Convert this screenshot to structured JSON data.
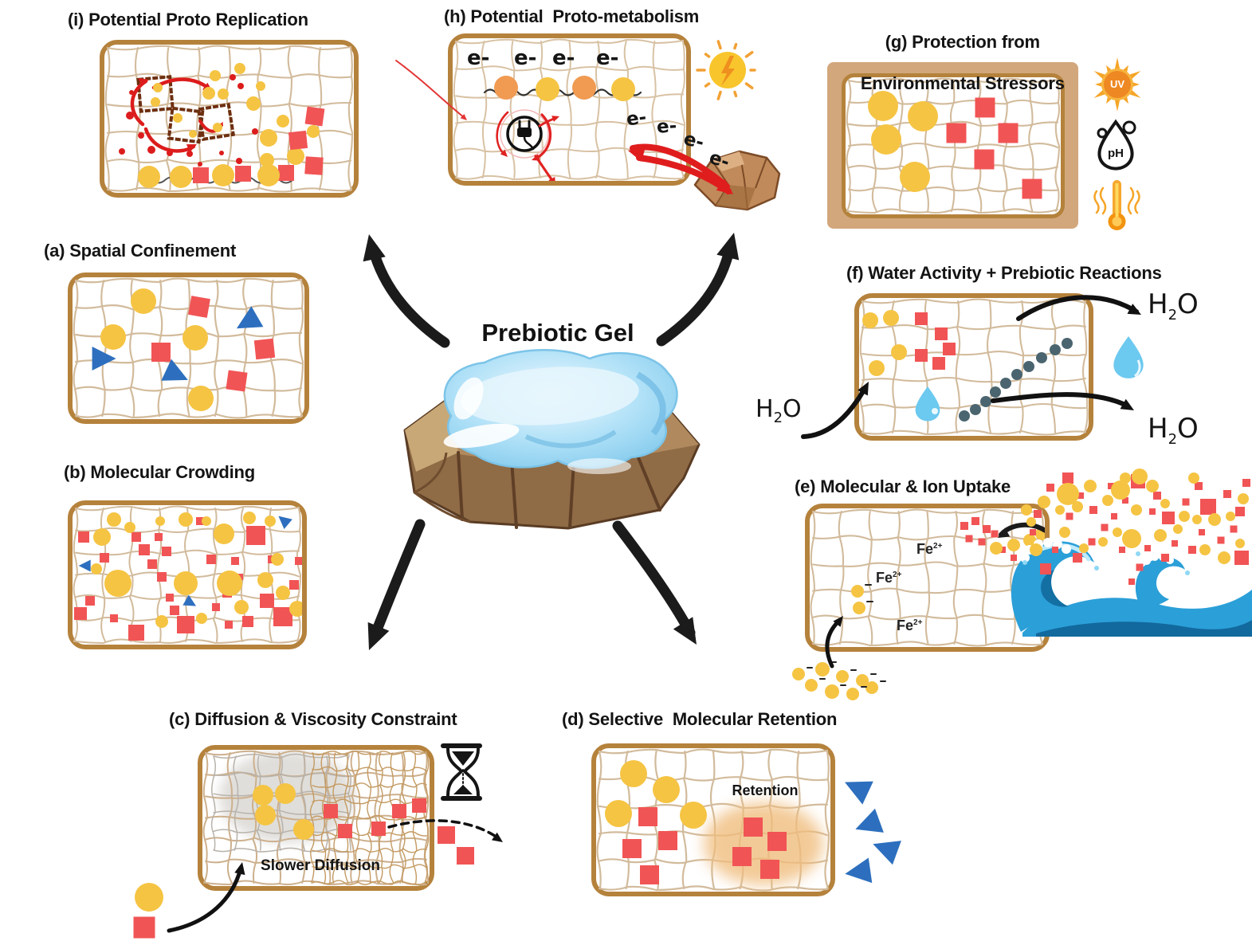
{
  "figure_title": "Prebiotic Gel",
  "panels": {
    "a": {
      "label": "(a) Spatial Confinement"
    },
    "b": {
      "label": "(b) Molecular Crowding"
    },
    "c": {
      "label": "(c) Diffusion & Viscosity Constraint",
      "annotation": "Slower Diffusion"
    },
    "d": {
      "label": "(d) Selective  Molecular Retention",
      "annotation": "Retention"
    },
    "e": {
      "label": "(e) Molecular & Ion Uptake",
      "ion_symbol": "Fe",
      "ion_charge": "2+"
    },
    "f": {
      "label": "(f) Water Activity + Prebiotic Reactions",
      "molecule_h": "H",
      "molecule_sub": "2",
      "molecule_o": "O"
    },
    "g": {
      "label_line1": "(g) Protection from",
      "label_line2": "Environmental Stressors",
      "uv_label": "UV",
      "ph_label": "pH"
    },
    "h": {
      "label": "(h) Potential  Proto-metabolism",
      "electron_label": "e-"
    },
    "i": {
      "label": "(i) Potential Proto Replication"
    }
  },
  "colors": {
    "panel_border": "#b5823c",
    "mesh": "#d2bb9c",
    "yellow_molecule": "#f5c443",
    "red_molecule": "#f15455",
    "blue_molecule": "#2d6fbe",
    "orange_molecule": "#f09a52",
    "dark_red": "#dc1c1c",
    "retention_glow": "#f0bd7e",
    "polymer_chain": "#4b6570",
    "water_droplet": "#6cc9ef",
    "wave_main": "#2b9fd8",
    "wave_dark": "#11669a",
    "gel_blue": "#aee0f7",
    "rock_brown": "#9c7850",
    "arrow_black": "#1b1b1b"
  },
  "icons": [
    "sun-energy-icon",
    "mineral-rock-icon",
    "uv-sun-icon",
    "ph-droplet-icon",
    "thermometer-icon",
    "hourglass-icon",
    "water-droplet-icon",
    "ocean-wave-icon",
    "electric-plug-icon",
    "prebiotic-gel-on-rock-icon"
  ]
}
